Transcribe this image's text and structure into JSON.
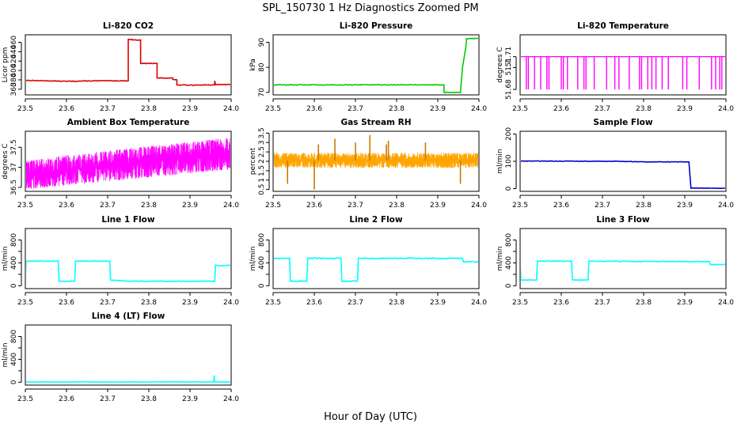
{
  "figure": {
    "title": "SPL_150730  1 Hz Diagnostics Zoomed PM",
    "xlabel": "Hour of Day (UTC)"
  },
  "chart_data": [
    {
      "type": "line",
      "title": "Li-820 CO2",
      "ylabel": "Licor ppm",
      "xlim": [
        23.5,
        24.0
      ],
      "ylim": [
        348,
        476
      ],
      "xticks": [
        "23.5",
        "23.6",
        "23.7",
        "23.8",
        "23.9",
        "24.0"
      ],
      "yticks": [
        360,
        380,
        400,
        420,
        440,
        460
      ],
      "color": "#dd0000",
      "noise": 0.6,
      "segments": [
        [
          23.5,
          379
        ],
        [
          23.6,
          377
        ],
        [
          23.68,
          378
        ],
        [
          23.75,
          378
        ],
        [
          23.75,
          466
        ],
        [
          23.76,
          466
        ],
        [
          23.76,
          465
        ],
        [
          23.78,
          465
        ],
        [
          23.78,
          415
        ],
        [
          23.82,
          415
        ],
        [
          23.82,
          384
        ],
        [
          23.858,
          384
        ],
        [
          23.858,
          381
        ],
        [
          23.868,
          380
        ],
        [
          23.868,
          369
        ],
        [
          23.96,
          369
        ],
        [
          23.96,
          378
        ],
        [
          23.962,
          370
        ],
        [
          24.0,
          370
        ]
      ]
    },
    {
      "type": "line",
      "title": "Li-820 Pressure",
      "ylabel": "kPa",
      "xlim": [
        23.5,
        24.0
      ],
      "ylim": [
        69,
        93
      ],
      "xticks": [
        "23.5",
        "23.6",
        "23.7",
        "23.8",
        "23.9",
        "24.0"
      ],
      "yticks": [
        70,
        80,
        90
      ],
      "color": "#00cc00",
      "noise": 0.15,
      "segments": [
        [
          23.5,
          73
        ],
        [
          23.915,
          73
        ],
        [
          23.915,
          70
        ],
        [
          23.955,
          70
        ],
        [
          23.96,
          80
        ],
        [
          23.968,
          88
        ],
        [
          23.97,
          91.5
        ],
        [
          24.0,
          91.5
        ]
      ]
    },
    {
      "type": "spikes",
      "title": "Li-820 Temperature",
      "ylabel": "degrees C",
      "xlim": [
        23.5,
        24.0
      ],
      "ylim": [
        51.675,
        51.73
      ],
      "xticks": [
        "23.5",
        "23.6",
        "23.7",
        "23.8",
        "23.9",
        "24.0"
      ],
      "yticks": [
        51.68,
        51.7,
        51.71
      ],
      "color": "#ff00ff",
      "base": 51.71,
      "low": 51.68,
      "end_peak": 51.725,
      "spike_at": [
        23.515,
        23.52,
        23.535,
        23.55,
        23.565,
        23.57,
        23.6,
        23.605,
        23.615,
        23.64,
        23.655,
        23.66,
        23.68,
        23.71,
        23.73,
        23.74,
        23.765,
        23.79,
        23.795,
        23.81,
        23.82,
        23.83,
        23.845,
        23.86,
        23.895,
        23.905,
        23.935,
        23.965,
        23.975,
        23.985,
        23.99
      ]
    },
    {
      "type": "noise_band",
      "title": "Ambient Box Temperature",
      "ylabel": "degrees C",
      "xlim": [
        23.5,
        24.0
      ],
      "ylim": [
        36.4,
        37.9
      ],
      "xticks": [
        "23.5",
        "23.6",
        "23.7",
        "23.8",
        "23.9",
        "24.0"
      ],
      "yticks": [
        36.5,
        37.0,
        37.5
      ],
      "ytick_labels": [
        "36.5",
        "37",
        "37.5"
      ],
      "color": "#ff00ff",
      "lower": [
        [
          23.5,
          36.45
        ],
        [
          24.0,
          36.95
        ]
      ],
      "upper": [
        [
          23.5,
          37.15
        ],
        [
          23.6,
          37.3
        ],
        [
          24.0,
          37.75
        ]
      ]
    },
    {
      "type": "noise_band",
      "title": "Gas Stream RH",
      "ylabel": "percent",
      "xlim": [
        23.5,
        24.0
      ],
      "ylim": [
        0.4,
        3.6
      ],
      "xticks": [
        "23.5",
        "23.6",
        "23.7",
        "23.8",
        "23.9",
        "24.0"
      ],
      "yticks": [
        0.5,
        1.0,
        1.5,
        2.0,
        2.5,
        3.0,
        3.5
      ],
      "ytick_labels": [
        "0.5",
        "1",
        "1.5",
        "2",
        "2.5",
        "3",
        "3.5"
      ],
      "color": "#ffa500",
      "point_color": "#cc7a00",
      "lower": [
        [
          23.5,
          1.65
        ],
        [
          24.0,
          1.65
        ]
      ],
      "upper": [
        [
          23.5,
          2.45
        ],
        [
          24.0,
          2.45
        ]
      ],
      "outliers": [
        [
          23.535,
          0.8
        ],
        [
          23.6,
          0.5
        ],
        [
          23.61,
          2.9
        ],
        [
          23.65,
          3.2
        ],
        [
          23.7,
          3.0
        ],
        [
          23.735,
          3.4
        ],
        [
          23.775,
          2.9
        ],
        [
          23.78,
          3.1
        ],
        [
          23.87,
          3.0
        ],
        [
          23.955,
          0.8
        ]
      ]
    },
    {
      "type": "line",
      "title": "Sample Flow",
      "ylabel": "ml/min",
      "xlim": [
        23.5,
        24.0
      ],
      "ylim": [
        -10,
        210
      ],
      "xticks": [
        "23.5",
        "23.6",
        "23.7",
        "23.8",
        "23.9",
        "24.0"
      ],
      "yticks": [
        0,
        100,
        200
      ],
      "color": "#0000cc",
      "noise": 0.8,
      "segments": [
        [
          23.5,
          101
        ],
        [
          23.75,
          100
        ],
        [
          23.8,
          98
        ],
        [
          23.91,
          98
        ],
        [
          23.915,
          2
        ],
        [
          24.0,
          1
        ]
      ]
    },
    {
      "type": "line",
      "title": "Line 1 Flow",
      "ylabel": "ml/min",
      "xlim": [
        23.5,
        24.0
      ],
      "ylim": [
        -50,
        1000
      ],
      "xticks": [
        "23.5",
        "23.6",
        "23.7",
        "23.8",
        "23.9",
        "24.0"
      ],
      "yticks": [
        0,
        200,
        400,
        600,
        800
      ],
      "ytick_labels": [
        "0",
        "",
        "400",
        "",
        "800"
      ],
      "color": "#00ffff",
      "noise": 5,
      "segments": [
        [
          23.5,
          100
        ],
        [
          23.502,
          430
        ],
        [
          23.58,
          430
        ],
        [
          23.582,
          80
        ],
        [
          23.62,
          80
        ],
        [
          23.622,
          430
        ],
        [
          23.705,
          430
        ],
        [
          23.707,
          100
        ],
        [
          23.745,
          80
        ],
        [
          23.96,
          80
        ],
        [
          23.962,
          360
        ],
        [
          23.97,
          350
        ],
        [
          24.0,
          360
        ]
      ]
    },
    {
      "type": "line",
      "title": "Line 2 Flow",
      "ylabel": "ml/min",
      "xlim": [
        23.5,
        24.0
      ],
      "ylim": [
        -50,
        1000
      ],
      "xticks": [
        "23.5",
        "23.6",
        "23.7",
        "23.8",
        "23.9",
        "24.0"
      ],
      "yticks": [
        0,
        200,
        400,
        600,
        800
      ],
      "ytick_labels": [
        "0",
        "",
        "400",
        "",
        "800"
      ],
      "color": "#00ffff",
      "noise": 8,
      "segments": [
        [
          23.5,
          480
        ],
        [
          23.54,
          480
        ],
        [
          23.542,
          80
        ],
        [
          23.582,
          80
        ],
        [
          23.584,
          480
        ],
        [
          23.665,
          480
        ],
        [
          23.667,
          80
        ],
        [
          23.705,
          80
        ],
        [
          23.707,
          480
        ],
        [
          23.96,
          480
        ],
        [
          23.962,
          420
        ],
        [
          24.0,
          420
        ]
      ]
    },
    {
      "type": "line",
      "title": "Line 3 Flow",
      "ylabel": "ml/min",
      "xlim": [
        23.5,
        24.0
      ],
      "ylim": [
        -50,
        1000
      ],
      "xticks": [
        "23.5",
        "23.6",
        "23.7",
        "23.8",
        "23.9",
        "24.0"
      ],
      "yticks": [
        0,
        200,
        400,
        600,
        800
      ],
      "ytick_labels": [
        "0",
        "",
        "400",
        "",
        "800"
      ],
      "color": "#00ffff",
      "noise": 5,
      "segments": [
        [
          23.5,
          430
        ],
        [
          23.502,
          100
        ],
        [
          23.54,
          100
        ],
        [
          23.542,
          430
        ],
        [
          23.625,
          430
        ],
        [
          23.627,
          100
        ],
        [
          23.665,
          100
        ],
        [
          23.667,
          430
        ],
        [
          23.91,
          420
        ],
        [
          23.96,
          420
        ],
        [
          23.962,
          370
        ],
        [
          24.0,
          370
        ]
      ]
    },
    {
      "type": "line",
      "title": "Line 4 (LT) Flow",
      "ylabel": "ml/min",
      "xlim": [
        23.5,
        24.0
      ],
      "ylim": [
        -50,
        1000
      ],
      "xticks": [
        "23.5",
        "23.6",
        "23.7",
        "23.8",
        "23.9",
        "24.0"
      ],
      "yticks": [
        0,
        200,
        400,
        600,
        800
      ],
      "ytick_labels": [
        "0",
        "",
        "400",
        "",
        "800"
      ],
      "color": "#00ffff",
      "noise": 2,
      "segments": [
        [
          23.5,
          5
        ],
        [
          23.958,
          5
        ],
        [
          23.959,
          120
        ],
        [
          23.96,
          5
        ],
        [
          24.0,
          5
        ]
      ]
    }
  ]
}
